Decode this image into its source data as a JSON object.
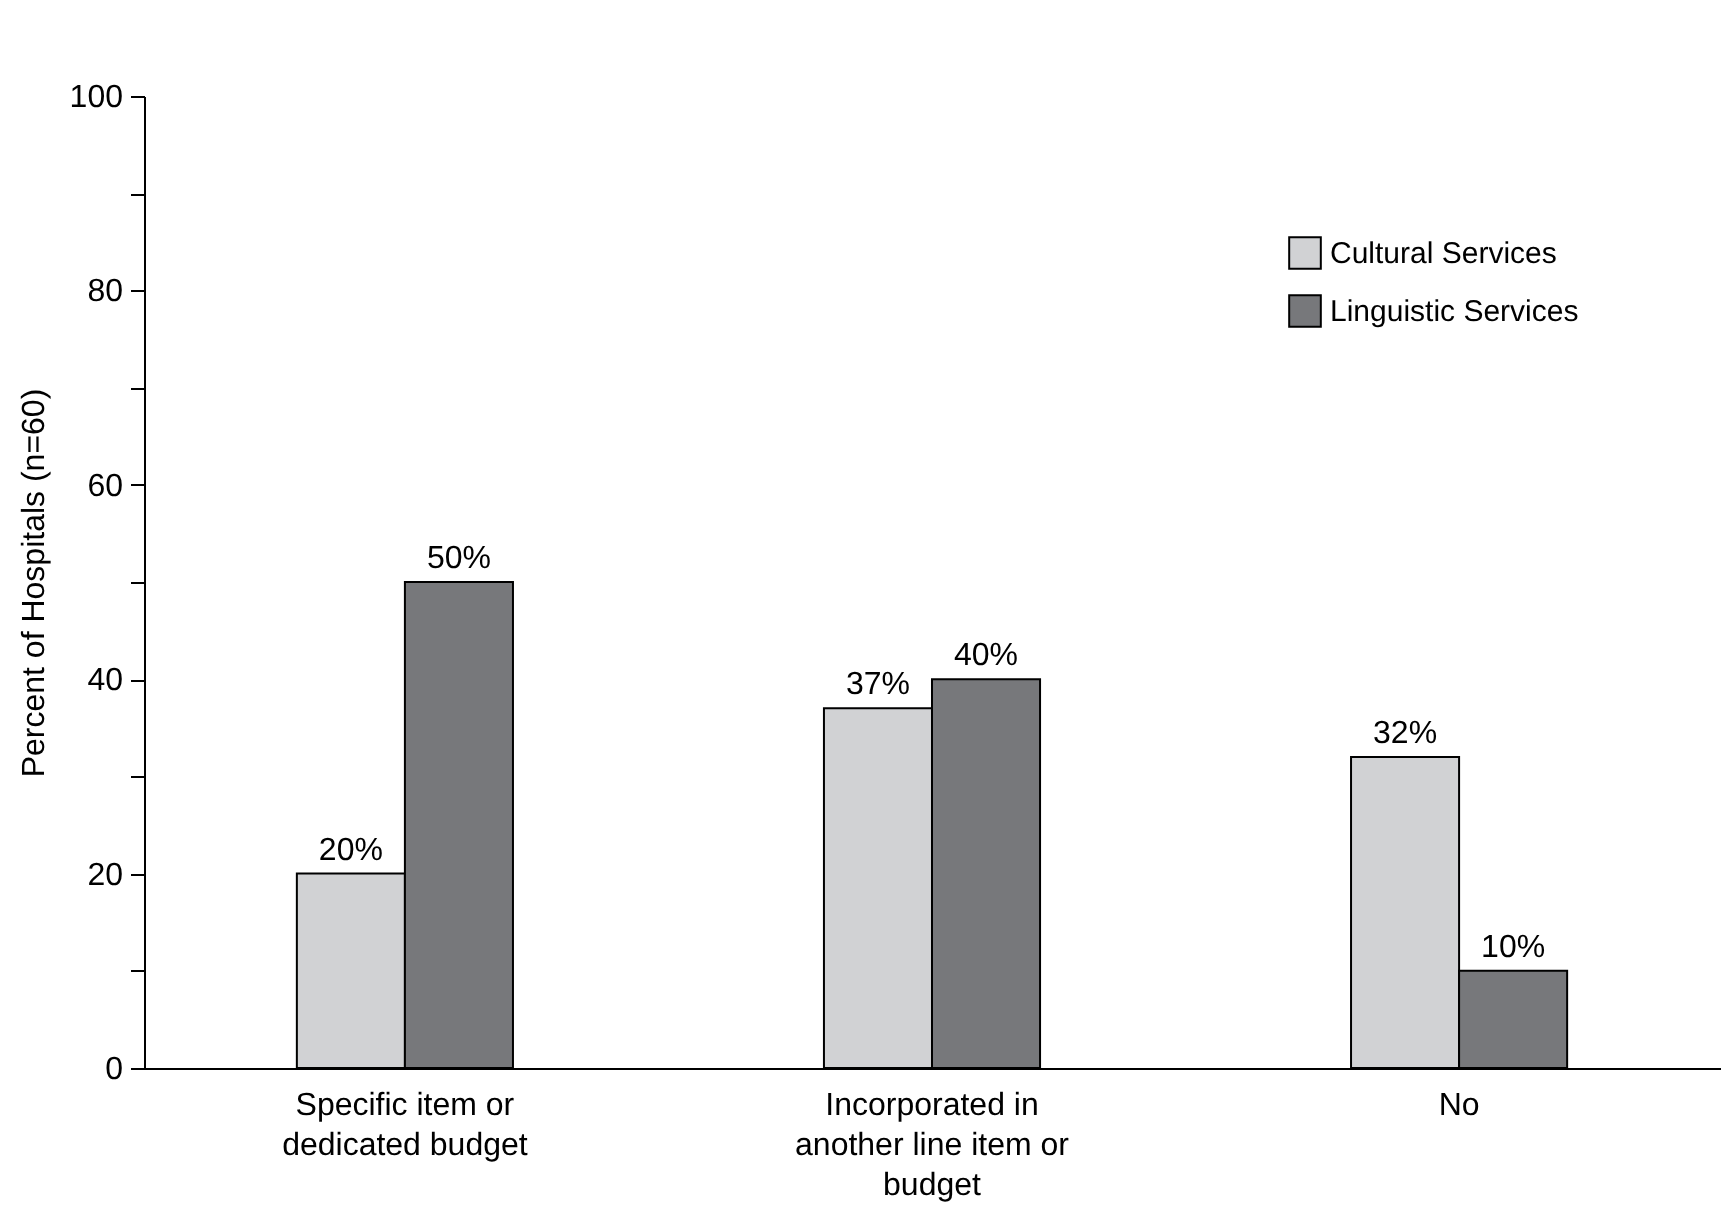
{
  "chart_data": {
    "type": "bar",
    "ylabel": "Percent of Hospitals (n=60)",
    "categories": [
      "Specific item or dedicated budget",
      "Incorporated in another line item or budget",
      "No"
    ],
    "series": [
      {
        "name": "Cultural Services",
        "color": "#d1d2d4",
        "values": [
          20,
          37,
          32
        ],
        "value_labels": [
          "20%",
          "37%",
          "32%"
        ]
      },
      {
        "name": "Linguistic Services",
        "color": "#77787b",
        "values": [
          50,
          40,
          10
        ],
        "value_labels": [
          "50%",
          "40%",
          "10%"
        ]
      }
    ],
    "ylim": [
      0,
      100
    ],
    "yticks": [
      0,
      {
        "value": 10,
        "label": null
      },
      20,
      {
        "value": 30,
        "label": null
      },
      40,
      {
        "value": 50,
        "label": null
      },
      60,
      {
        "value": 70,
        "label": null
      },
      80,
      {
        "value": 90,
        "label": null
      },
      100
    ],
    "grid": false,
    "legend": "top right"
  }
}
